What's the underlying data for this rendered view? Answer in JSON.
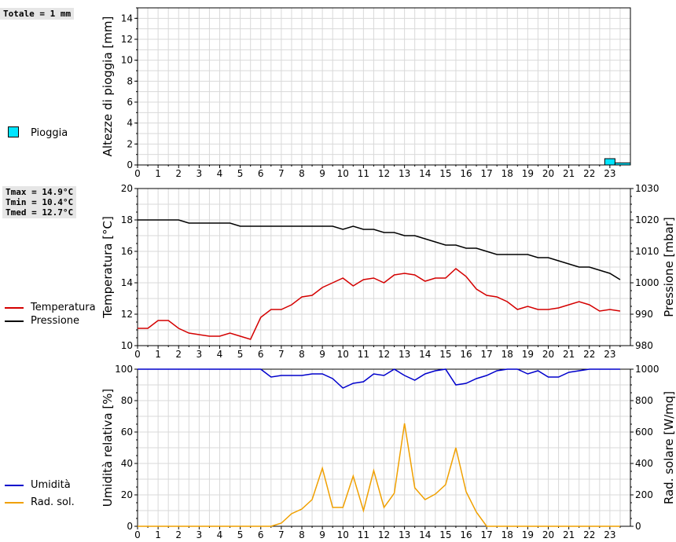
{
  "stats": {
    "rain_total": "Totale = 1 mm",
    "tmax": "Tmax = 14.9°C",
    "tmin": "Tmin = 10.4°C",
    "tmed": "Tmed = 12.7°C"
  },
  "legend": {
    "rain": "Pioggia",
    "temp": "Temperatura",
    "pressure": "Pressione",
    "humidity": "Umidità",
    "radiation": "Rad. sol."
  },
  "colors": {
    "rain": "#00e5ff",
    "temp": "#d40000",
    "pressure": "#000000",
    "humidity": "#0000cc",
    "radiation": "#f0a000",
    "grid": "#d9d9d9"
  },
  "chart_data": [
    {
      "type": "bar",
      "ylabel": "Altezze di pioggia [mm]",
      "ylim": [
        0,
        15
      ],
      "yticks": [
        0,
        2,
        4,
        6,
        8,
        10,
        12,
        14
      ],
      "xticks": [
        "0",
        "1",
        "2",
        "3",
        "4",
        "5",
        "6",
        "7",
        "8",
        "9",
        "10",
        "11",
        "12",
        "13",
        "14",
        "15",
        "16",
        "17",
        "18",
        "19",
        "20",
        "21",
        "22",
        "23"
      ],
      "grid": true,
      "series": [
        {
          "name": "Pioggia",
          "bars": [
            {
              "x0": 22.75,
              "x1": 23.25,
              "value": 0.6
            },
            {
              "x0": 23.25,
              "x1": 24.0,
              "value": 0.2
            }
          ]
        }
      ]
    },
    {
      "type": "line",
      "ylabel": "Temperatura [°C]",
      "y2label": "Pressione [mbar]",
      "ylim": [
        10,
        20
      ],
      "y2lim": [
        980,
        1030
      ],
      "yticks": [
        10,
        12,
        14,
        16,
        18,
        20
      ],
      "y2ticks": [
        980,
        990,
        1000,
        1010,
        1020,
        1030
      ],
      "xticks": [
        "0",
        "1",
        "2",
        "3",
        "4",
        "5",
        "6",
        "7",
        "8",
        "9",
        "10",
        "11",
        "12",
        "13",
        "14",
        "15",
        "16",
        "17",
        "18",
        "19",
        "20",
        "21",
        "22",
        "23"
      ],
      "grid": true,
      "series": [
        {
          "name": "Temperatura",
          "axis": "left",
          "x": [
            0,
            0.5,
            1,
            1.5,
            2,
            2.5,
            3,
            3.5,
            4,
            4.5,
            5,
            5.5,
            6,
            6.5,
            7,
            7.5,
            8,
            8.5,
            9,
            9.5,
            10,
            10.5,
            11,
            11.5,
            12,
            12.5,
            13,
            13.5,
            14,
            14.5,
            15,
            15.5,
            16,
            16.5,
            17,
            17.5,
            18,
            18.5,
            19,
            19.5,
            20,
            20.5,
            21,
            21.5,
            22,
            22.5,
            23,
            23.5
          ],
          "y": [
            11.1,
            11.1,
            11.6,
            11.6,
            11.1,
            10.8,
            10.7,
            10.6,
            10.6,
            10.8,
            10.6,
            10.4,
            11.8,
            12.3,
            12.3,
            12.6,
            13.1,
            13.2,
            13.7,
            14.0,
            14.3,
            13.8,
            14.2,
            14.3,
            14.0,
            14.5,
            14.6,
            14.5,
            14.1,
            14.3,
            14.3,
            14.9,
            14.4,
            13.6,
            13.2,
            13.1,
            12.8,
            12.3,
            12.5,
            12.3,
            12.3,
            12.4,
            12.6,
            12.8,
            12.6,
            12.2,
            12.3,
            12.2
          ]
        },
        {
          "name": "Pressione",
          "axis": "right",
          "x": [
            0,
            0.5,
            1,
            1.5,
            2,
            2.5,
            3,
            3.5,
            4,
            4.5,
            5,
            5.5,
            6,
            6.5,
            7,
            7.5,
            8,
            8.5,
            9,
            9.5,
            10,
            10.5,
            11,
            11.5,
            12,
            12.5,
            13,
            13.5,
            14,
            14.5,
            15,
            15.5,
            16,
            16.5,
            17,
            17.5,
            18,
            18.5,
            19,
            19.5,
            20,
            20.5,
            21,
            21.5,
            22,
            22.5,
            23,
            23.5
          ],
          "y": [
            1020,
            1020,
            1020,
            1020,
            1020,
            1019,
            1019,
            1019,
            1019,
            1019,
            1018,
            1018,
            1018,
            1018,
            1018,
            1018,
            1018,
            1018,
            1018,
            1018,
            1017,
            1018,
            1017,
            1017,
            1016,
            1016,
            1015,
            1015,
            1014,
            1013,
            1012,
            1012,
            1011,
            1011,
            1010,
            1009,
            1009,
            1009,
            1009,
            1008,
            1008,
            1007,
            1006,
            1005,
            1005,
            1004,
            1003,
            1001
          ]
        }
      ]
    },
    {
      "type": "line",
      "ylabel": "Umidità relativa [%]",
      "y2label": "Rad. solare [W/mq]",
      "ylim": [
        0,
        100
      ],
      "y2lim": [
        0,
        1000
      ],
      "yticks": [
        0,
        20,
        40,
        60,
        80,
        100
      ],
      "y2ticks": [
        0,
        200,
        400,
        600,
        800,
        1000
      ],
      "xticks": [
        "0",
        "1",
        "2",
        "3",
        "4",
        "5",
        "6",
        "7",
        "8",
        "9",
        "10",
        "11",
        "12",
        "13",
        "14",
        "15",
        "16",
        "17",
        "18",
        "19",
        "20",
        "21",
        "22",
        "23"
      ],
      "grid": true,
      "series": [
        {
          "name": "Umidità",
          "axis": "left",
          "x": [
            0,
            0.5,
            1,
            1.5,
            2,
            2.5,
            3,
            3.5,
            4,
            4.5,
            5,
            5.5,
            6,
            6.5,
            7,
            7.5,
            8,
            8.5,
            9,
            9.5,
            10,
            10.5,
            11,
            11.5,
            12,
            12.5,
            13,
            13.5,
            14,
            14.5,
            15,
            15.5,
            16,
            16.5,
            17,
            17.5,
            18,
            18.5,
            19,
            19.5,
            20,
            20.5,
            21,
            21.5,
            22,
            22.5,
            23,
            23.5
          ],
          "y": [
            100,
            100,
            100,
            100,
            100,
            100,
            100,
            100,
            100,
            100,
            100,
            100,
            100,
            95,
            96,
            96,
            96,
            97,
            97,
            94,
            88,
            91,
            92,
            97,
            96,
            100,
            96,
            93,
            97,
            99,
            100,
            90,
            91,
            94,
            96,
            99,
            100,
            100,
            97,
            99,
            95,
            95,
            98,
            99,
            100,
            100,
            100,
            100
          ]
        },
        {
          "name": "Rad. sol.",
          "axis": "right",
          "x": [
            0,
            0.5,
            1,
            1.5,
            2,
            2.5,
            3,
            3.5,
            4,
            4.5,
            5,
            5.5,
            6,
            6.5,
            7,
            7.5,
            8,
            8.5,
            9,
            9.5,
            10,
            10.5,
            11,
            11.5,
            12,
            12.5,
            13,
            13.5,
            14,
            14.5,
            15,
            15.5,
            16,
            16.5,
            17,
            17.5,
            18,
            18.5,
            19,
            19.5,
            20,
            20.5,
            21,
            21.5,
            22,
            22.5,
            23,
            23.5
          ],
          "y": [
            0,
            0,
            0,
            0,
            0,
            0,
            0,
            0,
            0,
            0,
            0,
            0,
            0,
            0,
            20,
            80,
            110,
            170,
            370,
            120,
            120,
            320,
            100,
            355,
            120,
            210,
            655,
            245,
            170,
            205,
            265,
            500,
            220,
            90,
            0,
            0,
            0,
            0,
            0,
            0,
            0,
            0,
            0,
            0,
            0,
            0,
            0,
            0
          ]
        }
      ]
    }
  ]
}
